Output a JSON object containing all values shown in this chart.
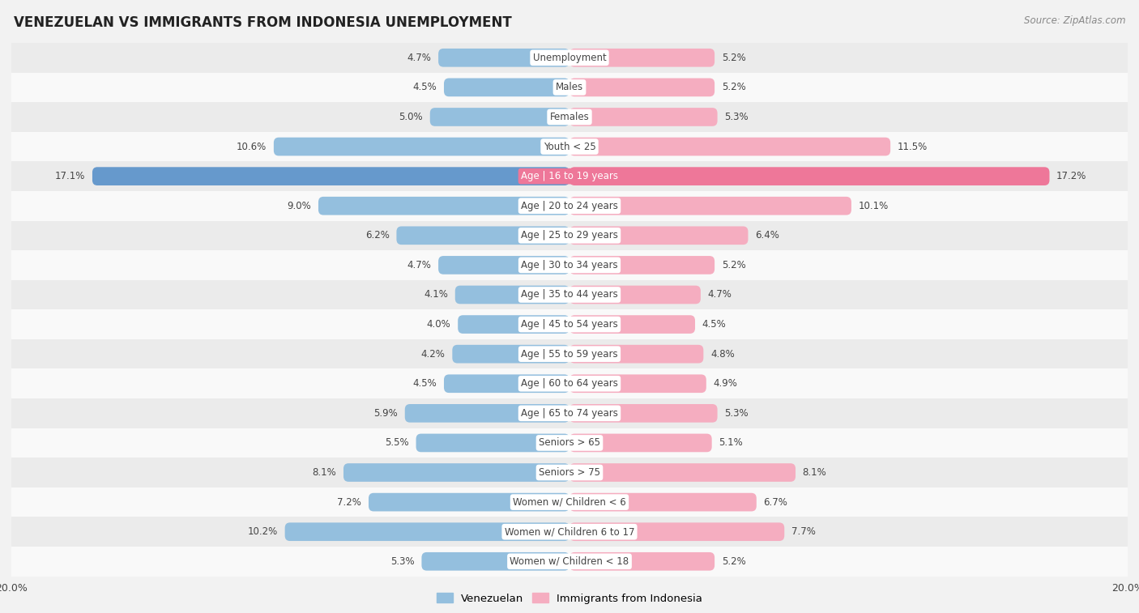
{
  "title": "VENEZUELAN VS IMMIGRANTS FROM INDONESIA UNEMPLOYMENT",
  "source": "Source: ZipAtlas.com",
  "categories": [
    "Unemployment",
    "Males",
    "Females",
    "Youth < 25",
    "Age | 16 to 19 years",
    "Age | 20 to 24 years",
    "Age | 25 to 29 years",
    "Age | 30 to 34 years",
    "Age | 35 to 44 years",
    "Age | 45 to 54 years",
    "Age | 55 to 59 years",
    "Age | 60 to 64 years",
    "Age | 65 to 74 years",
    "Seniors > 65",
    "Seniors > 75",
    "Women w/ Children < 6",
    "Women w/ Children 6 to 17",
    "Women w/ Children < 18"
  ],
  "venezuelan": [
    4.7,
    4.5,
    5.0,
    10.6,
    17.1,
    9.0,
    6.2,
    4.7,
    4.1,
    4.0,
    4.2,
    4.5,
    5.9,
    5.5,
    8.1,
    7.2,
    10.2,
    5.3
  ],
  "indonesia": [
    5.2,
    5.2,
    5.3,
    11.5,
    17.2,
    10.1,
    6.4,
    5.2,
    4.7,
    4.5,
    4.8,
    4.9,
    5.3,
    5.1,
    8.1,
    6.7,
    7.7,
    5.2
  ],
  "venezuelan_color": "#94bfde",
  "indonesia_color": "#f5adc0",
  "venezuelan_color_highlight": "#6699cc",
  "indonesia_color_highlight": "#ee7799",
  "highlight_category": "Age | 16 to 19 years",
  "background_color": "#f2f2f2",
  "row_bg_odd": "#ebebeb",
  "row_bg_even": "#f9f9f9",
  "max_val": 20.0,
  "legend_venezuelan": "Venezuelan",
  "legend_indonesia": "Immigrants from Indonesia",
  "label_fontsize": 8.5,
  "value_fontsize": 8.5,
  "title_fontsize": 12,
  "source_fontsize": 8.5
}
